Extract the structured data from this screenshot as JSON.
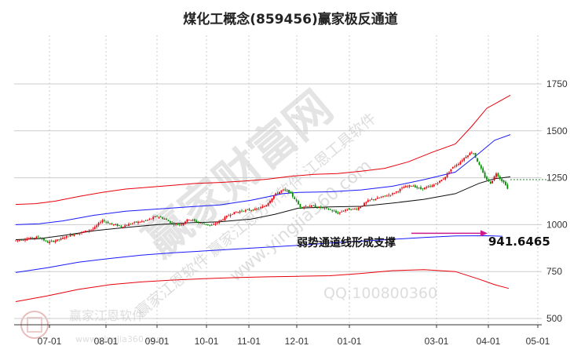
{
  "chart_data": {
    "type": "line",
    "title": "煤化工概念(859456)赢家极反通道",
    "x_ticks": [
      "07-01",
      "08-01",
      "09-01",
      "10-01",
      "11-01",
      "12-01",
      "01-01",
      "03-01",
      "04-01",
      "05-01"
    ],
    "y_ticks": [
      500,
      750,
      1000,
      1250,
      1500,
      1750
    ],
    "ylim": [
      480,
      1900
    ],
    "annotation": {
      "label": "弱势通道线形成支撑",
      "value": "941.6465",
      "level": 941.6465
    },
    "reference_level": 1240,
    "series": [
      {
        "key": "upper_red",
        "points": [
          [
            0,
            1108
          ],
          [
            25,
            1112
          ],
          [
            50,
            1125
          ],
          [
            80,
            1150
          ],
          [
            110,
            1172
          ],
          [
            140,
            1190
          ],
          [
            170,
            1200
          ],
          [
            200,
            1210
          ],
          [
            230,
            1220
          ],
          [
            260,
            1225
          ],
          [
            290,
            1232
          ],
          [
            320,
            1242
          ],
          [
            350,
            1258
          ],
          [
            380,
            1268
          ],
          [
            410,
            1272
          ],
          [
            440,
            1285
          ],
          [
            470,
            1300
          ],
          [
            500,
            1335
          ],
          [
            530,
            1385
          ],
          [
            560,
            1430
          ],
          [
            580,
            1520
          ],
          [
            600,
            1620
          ],
          [
            630,
            1690
          ]
        ]
      },
      {
        "key": "upper_blue",
        "points": [
          [
            0,
            1000
          ],
          [
            30,
            1005
          ],
          [
            60,
            1020
          ],
          [
            100,
            1050
          ],
          [
            140,
            1072
          ],
          [
            180,
            1083
          ],
          [
            220,
            1095
          ],
          [
            260,
            1105
          ],
          [
            300,
            1130
          ],
          [
            340,
            1165
          ],
          [
            360,
            1172
          ],
          [
            400,
            1175
          ],
          [
            440,
            1185
          ],
          [
            480,
            1205
          ],
          [
            520,
            1240
          ],
          [
            560,
            1280
          ],
          [
            590,
            1380
          ],
          [
            610,
            1450
          ],
          [
            630,
            1480
          ]
        ]
      },
      {
        "key": "middle_black",
        "points": [
          [
            0,
            920
          ],
          [
            30,
            925
          ],
          [
            60,
            942
          ],
          [
            100,
            968
          ],
          [
            140,
            985
          ],
          [
            180,
            1000
          ],
          [
            220,
            1010
          ],
          [
            260,
            1015
          ],
          [
            300,
            1030
          ],
          [
            330,
            1055
          ],
          [
            360,
            1088
          ],
          [
            400,
            1095
          ],
          [
            440,
            1098
          ],
          [
            480,
            1115
          ],
          [
            520,
            1135
          ],
          [
            560,
            1165
          ],
          [
            590,
            1220
          ],
          [
            610,
            1245
          ],
          [
            630,
            1255
          ]
        ]
      },
      {
        "key": "lower_blue",
        "points": [
          [
            0,
            745
          ],
          [
            40,
            770
          ],
          [
            80,
            800
          ],
          [
            120,
            820
          ],
          [
            160,
            838
          ],
          [
            200,
            850
          ],
          [
            240,
            860
          ],
          [
            280,
            870
          ],
          [
            320,
            880
          ],
          [
            360,
            890
          ],
          [
            400,
            902
          ],
          [
            440,
            912
          ],
          [
            480,
            922
          ],
          [
            520,
            932
          ],
          [
            560,
            940
          ],
          [
            600,
            941
          ],
          [
            620,
            938
          ]
        ]
      },
      {
        "key": "lower_red",
        "points": [
          [
            0,
            590
          ],
          [
            40,
            620
          ],
          [
            80,
            655
          ],
          [
            120,
            680
          ],
          [
            160,
            695
          ],
          [
            200,
            705
          ],
          [
            240,
            712
          ],
          [
            280,
            718
          ],
          [
            320,
            722
          ],
          [
            360,
            725
          ],
          [
            400,
            728
          ],
          [
            440,
            740
          ],
          [
            480,
            755
          ],
          [
            520,
            760
          ],
          [
            560,
            750
          ],
          [
            590,
            710
          ],
          [
            610,
            680
          ],
          [
            628,
            660
          ]
        ]
      },
      {
        "key": "price",
        "points": [
          [
            0,
            915
          ],
          [
            15,
            925
          ],
          [
            30,
            935
          ],
          [
            40,
            905
          ],
          [
            55,
            920
          ],
          [
            70,
            945
          ],
          [
            85,
            960
          ],
          [
            100,
            980
          ],
          [
            110,
            1025
          ],
          [
            120,
            1005
          ],
          [
            135,
            990
          ],
          [
            150,
            1010
          ],
          [
            165,
            1020
          ],
          [
            180,
            1045
          ],
          [
            190,
            1030
          ],
          [
            200,
            1005
          ],
          [
            210,
            1000
          ],
          [
            220,
            1030
          ],
          [
            235,
            1010
          ],
          [
            250,
            995
          ],
          [
            260,
            1020
          ],
          [
            275,
            1060
          ],
          [
            290,
            1075
          ],
          [
            305,
            1080
          ],
          [
            318,
            1100
          ],
          [
            330,
            1160
          ],
          [
            340,
            1185
          ],
          [
            348,
            1175
          ],
          [
            355,
            1140
          ],
          [
            362,
            1095
          ],
          [
            375,
            1100
          ],
          [
            390,
            1090
          ],
          [
            400,
            1080
          ],
          [
            410,
            1060
          ],
          [
            420,
            1080
          ],
          [
            435,
            1085
          ],
          [
            450,
            1130
          ],
          [
            465,
            1145
          ],
          [
            480,
            1165
          ],
          [
            495,
            1200
          ],
          [
            505,
            1210
          ],
          [
            515,
            1190
          ],
          [
            530,
            1205
          ],
          [
            545,
            1245
          ],
          [
            555,
            1300
          ],
          [
            565,
            1330
          ],
          [
            575,
            1370
          ],
          [
            582,
            1390
          ],
          [
            590,
            1320
          ],
          [
            598,
            1250
          ],
          [
            605,
            1220
          ],
          [
            612,
            1275
          ],
          [
            618,
            1240
          ],
          [
            624,
            1215
          ],
          [
            628,
            1175
          ]
        ]
      }
    ],
    "colors": {
      "red": "#e8000b",
      "blue": "#1a1aff",
      "black": "#111111",
      "price_up": "#e8000b",
      "price_down": "#008a00",
      "annotation_arrow": "#cc1b8c",
      "grid": "#cccccc"
    }
  },
  "watermark": {
    "main": "赢家财富网",
    "sub": "赢家江恩软件 赢家江恩分析软件 江恩工具软件",
    "url": "www.yingjia360.com",
    "qq": "QQ:100800360",
    "logo_text": "赢家江恩软件",
    "logo_url": "www.yingjia360.com"
  }
}
